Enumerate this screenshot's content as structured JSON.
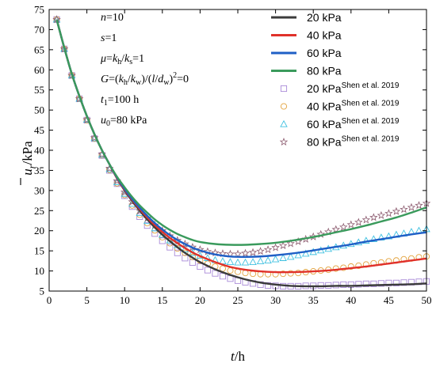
{
  "chart_data": {
    "type": "line",
    "xlabel_main": "t",
    "xlabel_unit": "/h",
    "ylabel_main": "u",
    "ylabel_sub": "r",
    "ylabel_unit": "/kPa",
    "xlim": [
      0,
      50
    ],
    "ylim": [
      5,
      75
    ],
    "x_ticks": [
      0,
      5,
      10,
      15,
      20,
      25,
      30,
      35,
      40,
      45,
      50
    ],
    "y_ticks": [
      5,
      10,
      15,
      20,
      25,
      30,
      35,
      40,
      45,
      50,
      55,
      60,
      65,
      70,
      75
    ],
    "grid": false,
    "legend_position": "top-right",
    "params": [
      {
        "italic": "n",
        "rest": "=10"
      },
      {
        "italic": "s",
        "rest": "=1"
      },
      {
        "html": "μ=k_h/k_s=1"
      },
      {
        "html": "G=(k_h/k_w)/(l/d_w)²=0"
      },
      {
        "html": "t₁=100 h"
      },
      {
        "html": "u₀=80 kPa"
      }
    ],
    "series": [
      {
        "name": "20 kPa",
        "kind": "line",
        "color": "#3b3b3b",
        "x": [
          1,
          2,
          3,
          4,
          5,
          6,
          7,
          8,
          9,
          10,
          11,
          12,
          13,
          14,
          15,
          16,
          17,
          18,
          19,
          20,
          22,
          24,
          26,
          28,
          30,
          32,
          34,
          36,
          38,
          40,
          42,
          44,
          46,
          48,
          50
        ],
        "y": [
          72.5,
          65.5,
          59,
          53.5,
          48.5,
          44,
          40,
          36.5,
          33,
          30,
          27.4,
          25,
          22.8,
          20.8,
          19,
          17.4,
          15.9,
          14.5,
          13.3,
          12.2,
          10.4,
          9,
          7.9,
          7.1,
          6.6,
          6.3,
          6.2,
          6.2,
          6.3,
          6.3,
          6.4,
          6.5,
          6.6,
          6.7,
          6.9
        ]
      },
      {
        "name": "40 kPa",
        "kind": "line",
        "color": "#e0312a",
        "x": [
          1,
          2,
          3,
          4,
          5,
          6,
          7,
          8,
          9,
          10,
          11,
          12,
          13,
          14,
          15,
          16,
          17,
          18,
          19,
          20,
          22,
          24,
          26,
          28,
          30,
          32,
          34,
          36,
          38,
          40,
          42,
          44,
          46,
          48,
          50
        ],
        "y": [
          72.5,
          65.5,
          59,
          53.5,
          48.5,
          44,
          40,
          36.5,
          33,
          30.2,
          27.7,
          25.4,
          23.3,
          21.4,
          19.7,
          18.2,
          16.9,
          15.7,
          14.6,
          13.7,
          12.2,
          11,
          10.3,
          9.9,
          9.7,
          9.7,
          9.8,
          10,
          10.3,
          10.7,
          11.1,
          11.6,
          12.1,
          12.6,
          13.1
        ]
      },
      {
        "name": "60 kPa",
        "kind": "line",
        "color": "#1f5fc6",
        "x": [
          1,
          2,
          3,
          4,
          5,
          6,
          7,
          8,
          9,
          10,
          11,
          12,
          13,
          14,
          15,
          16,
          17,
          18,
          19,
          20,
          22,
          24,
          26,
          28,
          30,
          32,
          34,
          36,
          38,
          40,
          42,
          44,
          46,
          48,
          50
        ],
        "y": [
          72.5,
          65.5,
          59,
          53.5,
          48.5,
          44,
          40,
          36.5,
          33.2,
          30.4,
          27.9,
          25.7,
          23.7,
          21.9,
          20.3,
          18.9,
          17.7,
          16.7,
          15.8,
          15.1,
          14.1,
          13.6,
          13.5,
          13.6,
          13.9,
          14.3,
          14.8,
          15.4,
          16,
          16.6,
          17.3,
          17.9,
          18.5,
          19.1,
          19.6
        ]
      },
      {
        "name": "80 kPa",
        "kind": "line",
        "color": "#3a9a5c",
        "x": [
          1,
          2,
          3,
          4,
          5,
          6,
          7,
          8,
          9,
          10,
          11,
          12,
          13,
          14,
          15,
          16,
          17,
          18,
          19,
          20,
          22,
          24,
          26,
          28,
          30,
          32,
          34,
          36,
          38,
          40,
          42,
          44,
          46,
          48,
          50
        ],
        "y": [
          72.5,
          65.5,
          59,
          53.5,
          48.5,
          44,
          40,
          36.5,
          33.4,
          30.8,
          28.4,
          26.3,
          24.5,
          22.8,
          21.4,
          20.2,
          19.2,
          18.4,
          17.7,
          17.2,
          16.7,
          16.5,
          16.5,
          16.7,
          17,
          17.5,
          18.1,
          18.8,
          19.6,
          20.4,
          21.3,
          22.3,
          23.3,
          24.5,
          25.8
        ]
      },
      {
        "name": "20 kPa",
        "sup": "Shen et al. 2019",
        "kind": "marker",
        "marker": "square",
        "color": "#a98ad8",
        "x": [
          1,
          2,
          3,
          4,
          5,
          6,
          7,
          8,
          9,
          10,
          11,
          12,
          13,
          14,
          15,
          16,
          17,
          18,
          19,
          20,
          21,
          22,
          23,
          24,
          25,
          26,
          27,
          28,
          29,
          30,
          31,
          32,
          33,
          34,
          35,
          36,
          37,
          38,
          39,
          40,
          41,
          42,
          43,
          44,
          45,
          46,
          47,
          48,
          49,
          50
        ],
        "y": [
          72.5,
          65.2,
          58.6,
          52.8,
          47.5,
          42.9,
          38.7,
          35,
          31.7,
          28.7,
          26,
          23.5,
          21.3,
          19.3,
          17.5,
          15.9,
          14.5,
          13.2,
          12.1,
          11.1,
          10.2,
          9.4,
          8.7,
          8.1,
          7.6,
          7.2,
          6.9,
          6.6,
          6.4,
          6.3,
          6.2,
          6.2,
          6.2,
          6.3,
          6.3,
          6.4,
          6.4,
          6.5,
          6.6,
          6.6,
          6.7,
          6.8,
          6.8,
          6.9,
          7,
          7,
          7.1,
          7.2,
          7.3,
          7.4
        ]
      },
      {
        "name": "40 kPa",
        "sup": "Shen et al. 2019",
        "kind": "marker",
        "marker": "circle",
        "color": "#e3a23c",
        "x": [
          1,
          2,
          3,
          4,
          5,
          6,
          7,
          8,
          9,
          10,
          11,
          12,
          13,
          14,
          15,
          16,
          17,
          18,
          19,
          20,
          21,
          22,
          23,
          24,
          25,
          26,
          27,
          28,
          29,
          30,
          31,
          32,
          33,
          34,
          35,
          36,
          37,
          38,
          39,
          40,
          41,
          42,
          43,
          44,
          45,
          46,
          47,
          48,
          49,
          50
        ],
        "y": [
          72.5,
          65.2,
          58.6,
          52.8,
          47.5,
          42.9,
          38.8,
          35.1,
          31.8,
          28.9,
          26.3,
          24,
          21.9,
          20.1,
          18.4,
          16.9,
          15.6,
          14.5,
          13.5,
          12.6,
          11.8,
          11.1,
          10.6,
          10.1,
          9.8,
          9.5,
          9.3,
          9.2,
          9.2,
          9.2,
          9.3,
          9.4,
          9.5,
          9.7,
          9.9,
          10.1,
          10.3,
          10.6,
          10.8,
          11.1,
          11.3,
          11.6,
          11.9,
          12.1,
          12.4,
          12.6,
          12.9,
          13.1,
          13.4,
          13.6
        ]
      },
      {
        "name": "60 kPa",
        "sup": "Shen et al. 2019",
        "kind": "marker",
        "marker": "triangle",
        "color": "#3ec0e0",
        "x": [
          1,
          2,
          3,
          4,
          5,
          6,
          7,
          8,
          9,
          10,
          11,
          12,
          13,
          14,
          15,
          16,
          17,
          18,
          19,
          20,
          21,
          22,
          23,
          24,
          25,
          26,
          27,
          28,
          29,
          30,
          31,
          32,
          33,
          34,
          35,
          36,
          37,
          38,
          39,
          40,
          41,
          42,
          43,
          44,
          45,
          46,
          47,
          48,
          49,
          50
        ],
        "y": [
          72.5,
          65.2,
          58.6,
          52.8,
          47.6,
          43,
          38.9,
          35.3,
          32.1,
          29.2,
          26.7,
          24.4,
          22.4,
          20.6,
          19,
          17.6,
          16.4,
          15.4,
          14.5,
          13.8,
          13.2,
          12.7,
          12.4,
          12.2,
          12.1,
          12.1,
          12.2,
          12.4,
          12.6,
          12.9,
          13.2,
          13.5,
          13.9,
          14.3,
          14.7,
          15.1,
          15.5,
          15.9,
          16.3,
          16.7,
          17.1,
          17.5,
          17.9,
          18.3,
          18.6,
          19,
          19.3,
          19.7,
          20,
          20.4
        ]
      },
      {
        "name": "80 kPa",
        "sup": "Shen et al. 2019",
        "kind": "marker",
        "marker": "star",
        "color": "#8b5a6e",
        "x": [
          1,
          2,
          3,
          4,
          5,
          6,
          7,
          8,
          9,
          10,
          11,
          12,
          13,
          14,
          15,
          16,
          17,
          18,
          19,
          20,
          21,
          22,
          23,
          24,
          25,
          26,
          27,
          28,
          29,
          30,
          31,
          32,
          33,
          34,
          35,
          36,
          37,
          38,
          39,
          40,
          41,
          42,
          43,
          44,
          45,
          46,
          47,
          48,
          49,
          50
        ],
        "y": [
          72.5,
          65.2,
          58.6,
          52.8,
          47.6,
          43.1,
          39,
          35.5,
          32.4,
          29.6,
          27.2,
          25,
          23.1,
          21.4,
          20,
          18.7,
          17.6,
          16.7,
          15.9,
          15.3,
          14.8,
          14.5,
          14.3,
          14.2,
          14.2,
          14.4,
          14.6,
          14.9,
          15.3,
          15.8,
          16.3,
          16.8,
          17.3,
          17.9,
          18.5,
          19.1,
          19.7,
          20.3,
          20.9,
          21.5,
          22.1,
          22.7,
          23.3,
          23.8,
          24.3,
          24.8,
          25.3,
          25.8,
          26.3,
          26.8
        ]
      }
    ]
  }
}
